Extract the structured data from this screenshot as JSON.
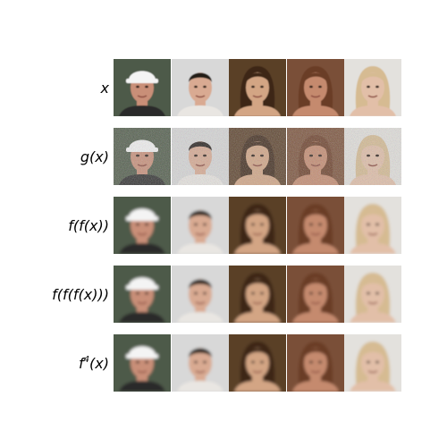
{
  "figure": {
    "rows": [
      {
        "label": "x",
        "label_sup": "",
        "label_tail": "",
        "variant": "clean"
      },
      {
        "label": "g(x)",
        "label_sup": "",
        "label_tail": "",
        "variant": "noisy"
      },
      {
        "label": "f(f(x))",
        "label_sup": "",
        "label_tail": "",
        "variant": "smooth"
      },
      {
        "label": "f(f(f(x)))",
        "label_sup": "",
        "label_tail": "",
        "variant": "smooth"
      },
      {
        "label": "f",
        "label_sup": "4",
        "label_tail": "(x)",
        "variant": "smooth"
      }
    ],
    "columns": [
      {
        "subject": "man-with-white-visor",
        "background": "#4e5a48",
        "skin": "#c98f78",
        "hair": "#2b2621",
        "hat": "#f4f4f4"
      },
      {
        "subject": "young-man-short-dark-hair",
        "background": "#d8d8d8",
        "skin": "#d9aa92",
        "hair": "#201a17",
        "hat": ""
      },
      {
        "subject": "woman-long-brown-hair",
        "background": "#5a3f28",
        "skin": "#d3a584",
        "hair": "#3d2718",
        "hat": ""
      },
      {
        "subject": "woman-auburn-hair",
        "background": "#7a5038",
        "skin": "#c58a6e",
        "hair": "#6b3d26",
        "hat": ""
      },
      {
        "subject": "blonde-woman",
        "background": "#e3e1dd",
        "skin": "#e2bfa8",
        "hair": "#d6bb92",
        "hat": ""
      }
    ]
  }
}
